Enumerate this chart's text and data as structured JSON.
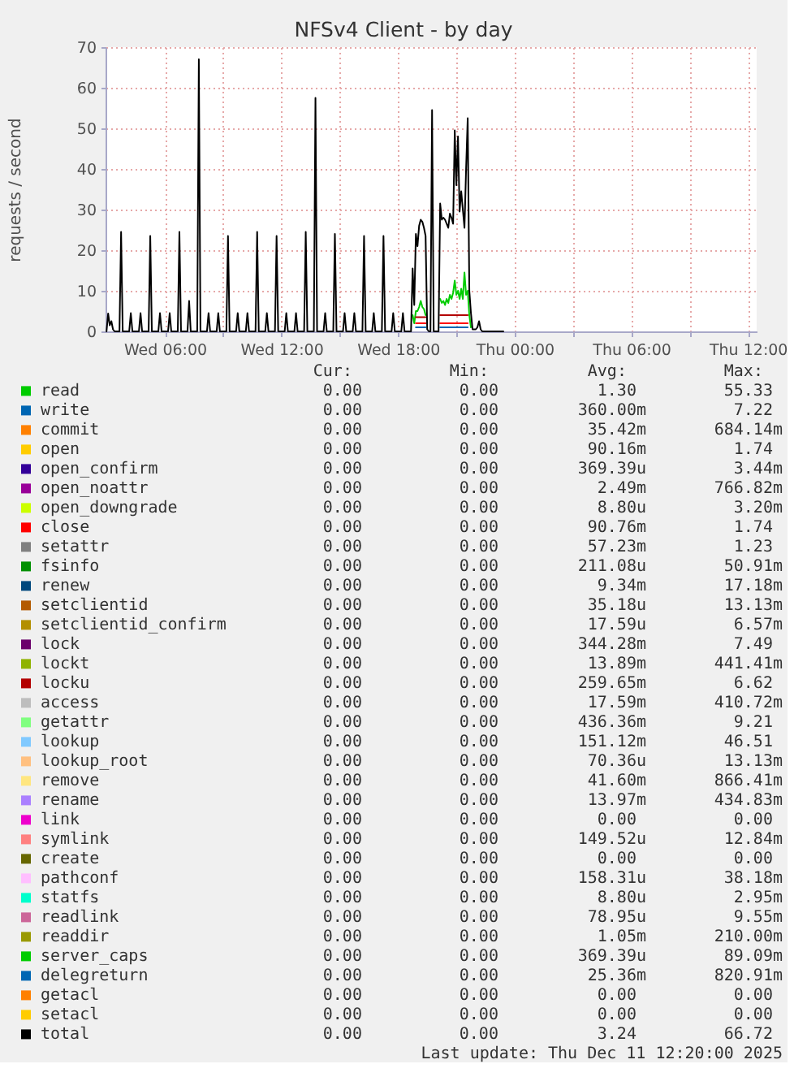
{
  "chart_data": {
    "type": "line",
    "title": "NFSv4 Client - by day",
    "ylabel": "requests / second",
    "xlim": [
      "2025-12-10T02:57",
      "2025-12-11T12:27"
    ],
    "xticks": [
      {
        "value": "2025-12-10T06:00",
        "label": "Wed 06:00"
      },
      {
        "value": "2025-12-10T09:00",
        "label": null
      },
      {
        "value": "2025-12-10T12:00",
        "label": "Wed 12:00"
      },
      {
        "value": "2025-12-10T15:00",
        "label": null
      },
      {
        "value": "2025-12-10T18:00",
        "label": "Wed 18:00"
      },
      {
        "value": "2025-12-10T21:00",
        "label": null
      },
      {
        "value": "2025-12-11T00:00",
        "label": "Thu 00:00"
      },
      {
        "value": "2025-12-11T03:00",
        "label": null
      },
      {
        "value": "2025-12-11T06:00",
        "label": "Thu 06:00"
      },
      {
        "value": "2025-12-11T09:00",
        "label": null
      },
      {
        "value": "2025-12-11T12:00",
        "label": "Thu 12:00"
      }
    ],
    "ylim": [
      0,
      70
    ],
    "yticks": [
      0,
      10,
      20,
      30,
      40,
      50,
      60,
      70
    ],
    "grid": true,
    "legend": "bottom",
    "series": [
      {
        "name": "read",
        "color": "#00cc00",
        "x": [
          "2025-12-10T18:45",
          "2025-12-10T18:50",
          "2025-12-10T18:55",
          "2025-12-10T19:00",
          "2025-12-10T19:05",
          "2025-12-10T19:10",
          "2025-12-10T19:15",
          "2025-12-10T19:20",
          "2025-12-10T19:25",
          "2025-12-10T19:30",
          "2025-12-10T20:10",
          "2025-12-10T20:15",
          "2025-12-10T20:20",
          "2025-12-10T20:25",
          "2025-12-10T20:30",
          "2025-12-10T20:35",
          "2025-12-10T20:40",
          "2025-12-10T20:45",
          "2025-12-10T20:50",
          "2025-12-10T20:55",
          "2025-12-10T21:00",
          "2025-12-10T21:05",
          "2025-12-10T21:10",
          "2025-12-10T21:15",
          "2025-12-10T21:20",
          "2025-12-10T21:25",
          "2025-12-10T21:30",
          "2025-12-10T21:35",
          "2025-12-10T21:40",
          "2025-12-10T21:45"
        ],
        "values": [
          4,
          2,
          5,
          5,
          6,
          7.5,
          6,
          5.5,
          4,
          null,
          8,
          7,
          7.5,
          6.5,
          8,
          7,
          9,
          8,
          9.5,
          12.5,
          9,
          10,
          8,
          10.5,
          8,
          14.5,
          9,
          10,
          4,
          1
        ]
      },
      {
        "name": "write",
        "color": "#0066b3",
        "x": [
          "2025-12-10T18:55",
          "2025-12-10T19:25",
          "2025-12-10T19:30",
          "2025-12-10T20:10",
          "2025-12-10T21:35"
        ],
        "values": [
          1,
          1,
          null,
          1,
          1
        ]
      },
      {
        "name": "commit",
        "color": "#ff8000"
      },
      {
        "name": "open",
        "color": "#ffcc00"
      },
      {
        "name": "open_confirm",
        "color": "#330099"
      },
      {
        "name": "open_noattr",
        "color": "#990099"
      },
      {
        "name": "open_downgrade",
        "color": "#ccff00"
      },
      {
        "name": "close",
        "color": "#ff0000",
        "x": [
          "2025-12-10T18:55",
          "2025-12-10T19:25",
          "2025-12-10T19:30",
          "2025-12-10T20:10",
          "2025-12-10T21:35"
        ],
        "values": [
          2,
          2,
          null,
          2,
          2
        ]
      },
      {
        "name": "setattr",
        "color": "#808080"
      },
      {
        "name": "fsinfo",
        "color": "#008f00"
      },
      {
        "name": "renew",
        "color": "#00487d"
      },
      {
        "name": "setclientid",
        "color": "#b35a00"
      },
      {
        "name": "setclientid_confirm",
        "color": "#b38f00"
      },
      {
        "name": "lock",
        "color": "#6b006b"
      },
      {
        "name": "lockt",
        "color": "#8fb300"
      },
      {
        "name": "locku",
        "color": "#b30000",
        "x": [
          "2025-12-10T18:55",
          "2025-12-10T19:25",
          "2025-12-10T19:30",
          "2025-12-10T20:10",
          "2025-12-10T21:35"
        ],
        "values": [
          3.5,
          3.5,
          null,
          4,
          4
        ]
      },
      {
        "name": "access",
        "color": "#bebebe"
      },
      {
        "name": "getattr",
        "color": "#80ff80"
      },
      {
        "name": "lookup",
        "color": "#80c9ff"
      },
      {
        "name": "lookup_root",
        "color": "#ffc080"
      },
      {
        "name": "remove",
        "color": "#ffe680"
      },
      {
        "name": "rename",
        "color": "#aa80ff"
      },
      {
        "name": "link",
        "color": "#ee00cc"
      },
      {
        "name": "symlink",
        "color": "#ff8080"
      },
      {
        "name": "create",
        "color": "#666600"
      },
      {
        "name": "pathconf",
        "color": "#ffbfff"
      },
      {
        "name": "statfs",
        "color": "#00ffcc"
      },
      {
        "name": "readlink",
        "color": "#cc6699"
      },
      {
        "name": "readdir",
        "color": "#999900"
      },
      {
        "name": "server_caps",
        "color": "#00cc00"
      },
      {
        "name": "delegreturn",
        "color": "#0066b3"
      },
      {
        "name": "getacl",
        "color": "#ff8000"
      },
      {
        "name": "setacl",
        "color": "#ffcc00"
      },
      {
        "name": "total",
        "color": "#000000",
        "x": [
          "2025-12-10T03:00",
          "2025-12-10T03:05",
          "2025-12-10T03:10",
          "2025-12-10T03:15",
          "2025-12-10T03:20",
          "2025-12-10T03:25",
          "2025-12-10T03:40",
          "2025-12-10T03:45",
          "2025-12-10T03:50",
          "2025-12-10T04:10",
          "2025-12-10T04:15",
          "2025-12-10T04:20",
          "2025-12-10T04:40",
          "2025-12-10T04:45",
          "2025-12-10T04:50",
          "2025-12-10T05:10",
          "2025-12-10T05:15",
          "2025-12-10T05:20",
          "2025-12-10T05:40",
          "2025-12-10T05:45",
          "2025-12-10T05:50",
          "2025-12-10T06:10",
          "2025-12-10T06:15",
          "2025-12-10T06:20",
          "2025-12-10T06:40",
          "2025-12-10T06:45",
          "2025-12-10T06:50",
          "2025-12-10T07:10",
          "2025-12-10T07:15",
          "2025-12-10T07:20",
          "2025-12-10T07:40",
          "2025-12-10T07:45",
          "2025-12-10T07:50",
          "2025-12-10T08:10",
          "2025-12-10T08:15",
          "2025-12-10T08:20",
          "2025-12-10T08:40",
          "2025-12-10T08:45",
          "2025-12-10T08:50",
          "2025-12-10T09:10",
          "2025-12-10T09:15",
          "2025-12-10T09:20",
          "2025-12-10T09:40",
          "2025-12-10T09:45",
          "2025-12-10T09:50",
          "2025-12-10T10:10",
          "2025-12-10T10:15",
          "2025-12-10T10:20",
          "2025-12-10T10:40",
          "2025-12-10T10:45",
          "2025-12-10T10:50",
          "2025-12-10T11:10",
          "2025-12-10T11:15",
          "2025-12-10T11:20",
          "2025-12-10T11:40",
          "2025-12-10T11:45",
          "2025-12-10T11:50",
          "2025-12-10T12:10",
          "2025-12-10T12:15",
          "2025-12-10T12:20",
          "2025-12-10T12:40",
          "2025-12-10T12:45",
          "2025-12-10T12:50",
          "2025-12-10T13:10",
          "2025-12-10T13:15",
          "2025-12-10T13:20",
          "2025-12-10T13:40",
          "2025-12-10T13:45",
          "2025-12-10T13:50",
          "2025-12-10T14:10",
          "2025-12-10T14:15",
          "2025-12-10T14:20",
          "2025-12-10T14:40",
          "2025-12-10T14:45",
          "2025-12-10T14:50",
          "2025-12-10T15:10",
          "2025-12-10T15:15",
          "2025-12-10T15:20",
          "2025-12-10T15:40",
          "2025-12-10T15:45",
          "2025-12-10T15:50",
          "2025-12-10T16:10",
          "2025-12-10T16:15",
          "2025-12-10T16:20",
          "2025-12-10T16:40",
          "2025-12-10T16:45",
          "2025-12-10T16:50",
          "2025-12-10T17:10",
          "2025-12-10T17:15",
          "2025-12-10T17:20",
          "2025-12-10T17:40",
          "2025-12-10T17:45",
          "2025-12-10T17:50",
          "2025-12-10T18:10",
          "2025-12-10T18:15",
          "2025-12-10T18:20",
          "2025-12-10T18:40",
          "2025-12-10T18:45",
          "2025-12-10T18:50",
          "2025-12-10T18:55",
          "2025-12-10T19:00",
          "2025-12-10T19:05",
          "2025-12-10T19:10",
          "2025-12-10T19:15",
          "2025-12-10T19:20",
          "2025-12-10T19:25",
          "2025-12-10T19:30",
          "2025-12-10T19:35",
          "2025-12-10T19:40",
          "2025-12-10T19:45",
          "2025-12-10T19:50",
          "2025-12-10T20:05",
          "2025-12-10T20:10",
          "2025-12-10T20:15",
          "2025-12-10T20:20",
          "2025-12-10T20:25",
          "2025-12-10T20:30",
          "2025-12-10T20:35",
          "2025-12-10T20:40",
          "2025-12-10T20:45",
          "2025-12-10T20:50",
          "2025-12-10T20:55",
          "2025-12-10T21:00",
          "2025-12-10T21:05",
          "2025-12-10T21:10",
          "2025-12-10T21:15",
          "2025-12-10T21:20",
          "2025-12-10T21:25",
          "2025-12-10T21:30",
          "2025-12-10T21:35",
          "2025-12-10T21:40",
          "2025-12-10T21:45",
          "2025-12-10T21:50",
          "2025-12-10T21:55",
          "2025-12-10T22:00",
          "2025-12-10T22:05",
          "2025-12-10T22:10",
          "2025-12-10T22:15",
          "2025-12-10T22:20",
          "2025-12-10T23:25"
        ],
        "values": [
          0,
          4.4,
          1.5,
          2.5,
          0.5,
          0,
          0,
          24.5,
          0,
          0,
          4.5,
          0,
          0,
          4.5,
          0,
          0,
          23.5,
          0,
          0,
          4.5,
          0,
          0,
          4.5,
          0,
          0,
          24.5,
          0,
          0,
          7.5,
          0,
          0,
          67,
          0,
          0,
          4.5,
          0,
          0,
          4.5,
          0,
          0,
          23.5,
          0,
          0,
          4.5,
          0,
          0,
          4.5,
          0,
          0,
          24.5,
          0,
          0,
          4.5,
          0,
          0,
          23.5,
          0,
          0,
          4.5,
          0,
          0,
          4.5,
          0,
          0,
          24.5,
          0,
          0,
          57.5,
          0,
          0,
          4.5,
          0,
          0,
          24,
          0,
          0,
          4.5,
          0,
          0,
          4.5,
          0,
          0,
          23.5,
          0,
          0,
          4.5,
          0,
          0,
          23.5,
          0,
          0,
          4.5,
          0,
          0,
          4.5,
          0,
          0,
          15.5,
          6.5,
          24,
          21,
          26,
          27.5,
          27,
          25.5,
          23.5,
          0.5,
          0,
          0,
          54.5,
          0,
          0,
          31.5,
          27.5,
          28,
          27.5,
          26.5,
          25.5,
          29,
          28,
          26.5,
          49.5,
          36,
          48,
          29.5,
          34.5,
          30,
          25.5,
          40,
          52.5,
          10,
          4.5,
          0.5,
          0.5,
          0.5,
          1,
          2.5,
          0.5,
          0,
          0
        ]
      }
    ],
    "annotations": [
      "Cur:",
      "Min:",
      "Avg:",
      "Max:",
      "0.00",
      "0.00",
      "1.30",
      "55.33",
      "0.00",
      "0.00",
      "360.00m",
      "7.22",
      "0.00",
      "0.00",
      "35.42m",
      "684.14m",
      "0.00",
      "0.00",
      "90.16m",
      "1.74",
      "0.00",
      "0.00",
      "369.39u",
      "3.44m",
      "0.00",
      "0.00",
      "2.49m",
      "766.82m",
      "0.00",
      "0.00",
      "8.80u",
      "3.20m",
      "0.00",
      "0.00",
      "90.76m",
      "1.74",
      "0.00",
      "0.00",
      "57.23m",
      "1.23",
      "0.00",
      "0.00",
      "211.08u",
      "50.91m",
      "0.00",
      "0.00",
      "9.34m",
      "17.18m",
      "0.00",
      "0.00",
      "35.18u",
      "13.13m",
      "0.00",
      "0.00",
      "17.59u",
      "6.57m",
      "0.00",
      "0.00",
      "344.28m",
      "7.49",
      "0.00",
      "0.00",
      "13.89m",
      "441.41m",
      "0.00",
      "0.00",
      "259.65m",
      "6.62",
      "0.00",
      "0.00",
      "17.59m",
      "410.72m",
      "0.00",
      "0.00",
      "436.36m",
      "9.21",
      "0.00",
      "0.00",
      "151.12m",
      "46.51",
      "0.00",
      "0.00",
      "70.36u",
      "13.13m",
      "0.00",
      "0.00",
      "41.60m",
      "866.41m",
      "0.00",
      "0.00",
      "13.97m",
      "434.83m",
      "0.00",
      "0.00",
      "0.00",
      "0.00",
      "0.00",
      "0.00",
      "149.52u",
      "12.84m",
      "0.00",
      "0.00",
      "0.00",
      "0.00",
      "0.00",
      "0.00",
      "158.31u",
      "38.18m",
      "0.00",
      "0.00",
      "8.80u",
      "2.95m",
      "0.00",
      "0.00",
      "78.95u",
      "9.55m",
      "0.00",
      "0.00",
      "1.05m",
      "210.00m",
      "0.00",
      "0.00",
      "369.39u",
      "89.09m",
      "0.00",
      "0.00",
      "25.36m",
      "820.91m",
      "0.00",
      "0.00",
      "0.00",
      "0.00",
      "0.00",
      "0.00",
      "0.00",
      "0.00",
      "0.00",
      "0.00",
      "3.24",
      "66.72",
      "Last update: Thu Dec 11 12:20:00 2025"
    ]
  }
}
